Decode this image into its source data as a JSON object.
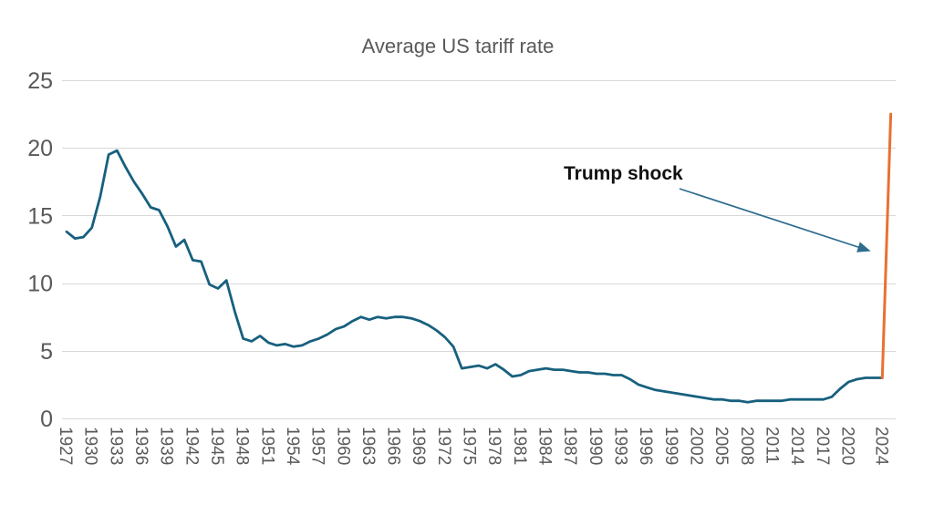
{
  "chart_data": {
    "type": "line",
    "title": "Average US tariff rate",
    "xlabel": "",
    "ylabel": "",
    "ylim": [
      0,
      25
    ],
    "yticks": [
      0,
      5,
      10,
      15,
      20,
      25
    ],
    "xtick_labels": [
      "1927",
      "1930",
      "1933",
      "1936",
      "1939",
      "1942",
      "1945",
      "1948",
      "1951",
      "1954",
      "1957",
      "1960",
      "1963",
      "1966",
      "1969",
      "1972",
      "1975",
      "1978",
      "1981",
      "1984",
      "1987",
      "1990",
      "1993",
      "1996",
      "1999",
      "2002",
      "2005",
      "2008",
      "2011",
      "2014",
      "2017",
      "2020",
      "2024"
    ],
    "grid": "horizontal",
    "legend": "none",
    "annotation": {
      "text": "Trump shock",
      "arrow_color": "#2F6D8E"
    },
    "series": [
      {
        "name": "Average US tariff rate 1927-2024",
        "color": "#17607E",
        "points": [
          [
            1927,
            13.8
          ],
          [
            1928,
            13.3
          ],
          [
            1929,
            13.4
          ],
          [
            1930,
            14.1
          ],
          [
            1931,
            16.4
          ],
          [
            1932,
            19.5
          ],
          [
            1933,
            19.8
          ],
          [
            1934,
            18.6
          ],
          [
            1935,
            17.5
          ],
          [
            1936,
            16.6
          ],
          [
            1937,
            15.6
          ],
          [
            1938,
            15.4
          ],
          [
            1939,
            14.2
          ],
          [
            1940,
            12.7
          ],
          [
            1941,
            13.2
          ],
          [
            1942,
            11.7
          ],
          [
            1943,
            11.6
          ],
          [
            1944,
            9.9
          ],
          [
            1945,
            9.6
          ],
          [
            1946,
            10.2
          ],
          [
            1947,
            7.9
          ],
          [
            1948,
            5.9
          ],
          [
            1949,
            5.7
          ],
          [
            1950,
            6.1
          ],
          [
            1951,
            5.6
          ],
          [
            1952,
            5.4
          ],
          [
            1953,
            5.5
          ],
          [
            1954,
            5.3
          ],
          [
            1955,
            5.4
          ],
          [
            1956,
            5.7
          ],
          [
            1957,
            5.9
          ],
          [
            1958,
            6.2
          ],
          [
            1959,
            6.6
          ],
          [
            1960,
            6.8
          ],
          [
            1961,
            7.2
          ],
          [
            1962,
            7.5
          ],
          [
            1963,
            7.3
          ],
          [
            1964,
            7.5
          ],
          [
            1965,
            7.4
          ],
          [
            1966,
            7.5
          ],
          [
            1967,
            7.5
          ],
          [
            1968,
            7.4
          ],
          [
            1969,
            7.2
          ],
          [
            1970,
            6.9
          ],
          [
            1971,
            6.5
          ],
          [
            1972,
            6.0
          ],
          [
            1973,
            5.3
          ],
          [
            1974,
            3.7
          ],
          [
            1975,
            3.8
          ],
          [
            1976,
            3.9
          ],
          [
            1977,
            3.7
          ],
          [
            1978,
            4.0
          ],
          [
            1979,
            3.6
          ],
          [
            1980,
            3.1
          ],
          [
            1981,
            3.2
          ],
          [
            1982,
            3.5
          ],
          [
            1983,
            3.6
          ],
          [
            1984,
            3.7
          ],
          [
            1985,
            3.6
          ],
          [
            1986,
            3.6
          ],
          [
            1987,
            3.5
          ],
          [
            1988,
            3.4
          ],
          [
            1989,
            3.4
          ],
          [
            1990,
            3.3
          ],
          [
            1991,
            3.3
          ],
          [
            1992,
            3.2
          ],
          [
            1993,
            3.2
          ],
          [
            1994,
            2.9
          ],
          [
            1995,
            2.5
          ],
          [
            1996,
            2.3
          ],
          [
            1997,
            2.1
          ],
          [
            1998,
            2.0
          ],
          [
            1999,
            1.9
          ],
          [
            2000,
            1.8
          ],
          [
            2001,
            1.7
          ],
          [
            2002,
            1.6
          ],
          [
            2003,
            1.5
          ],
          [
            2004,
            1.4
          ],
          [
            2005,
            1.4
          ],
          [
            2006,
            1.3
          ],
          [
            2007,
            1.3
          ],
          [
            2008,
            1.2
          ],
          [
            2009,
            1.3
          ],
          [
            2010,
            1.3
          ],
          [
            2011,
            1.3
          ],
          [
            2012,
            1.3
          ],
          [
            2013,
            1.4
          ],
          [
            2014,
            1.4
          ],
          [
            2015,
            1.4
          ],
          [
            2016,
            1.4
          ],
          [
            2017,
            1.4
          ],
          [
            2018,
            1.6
          ],
          [
            2019,
            2.2
          ],
          [
            2020,
            2.7
          ],
          [
            2021,
            2.9
          ],
          [
            2022,
            3.0
          ],
          [
            2023,
            3.0
          ],
          [
            2024,
            3.0
          ]
        ]
      },
      {
        "name": "Trump shock spike 2024-2025",
        "color": "#E97132",
        "points": [
          [
            2024,
            3.0
          ],
          [
            2025,
            22.5
          ]
        ]
      }
    ],
    "colors": {
      "historical_line": "#17607E",
      "shock_line": "#E97132",
      "gridline": "#D9D9D9",
      "axis_text": "#595959",
      "title_text": "#595959",
      "annotation_text": "#111111",
      "annotation_arrow": "#2F6D8E",
      "background": "#FFFFFF"
    }
  }
}
